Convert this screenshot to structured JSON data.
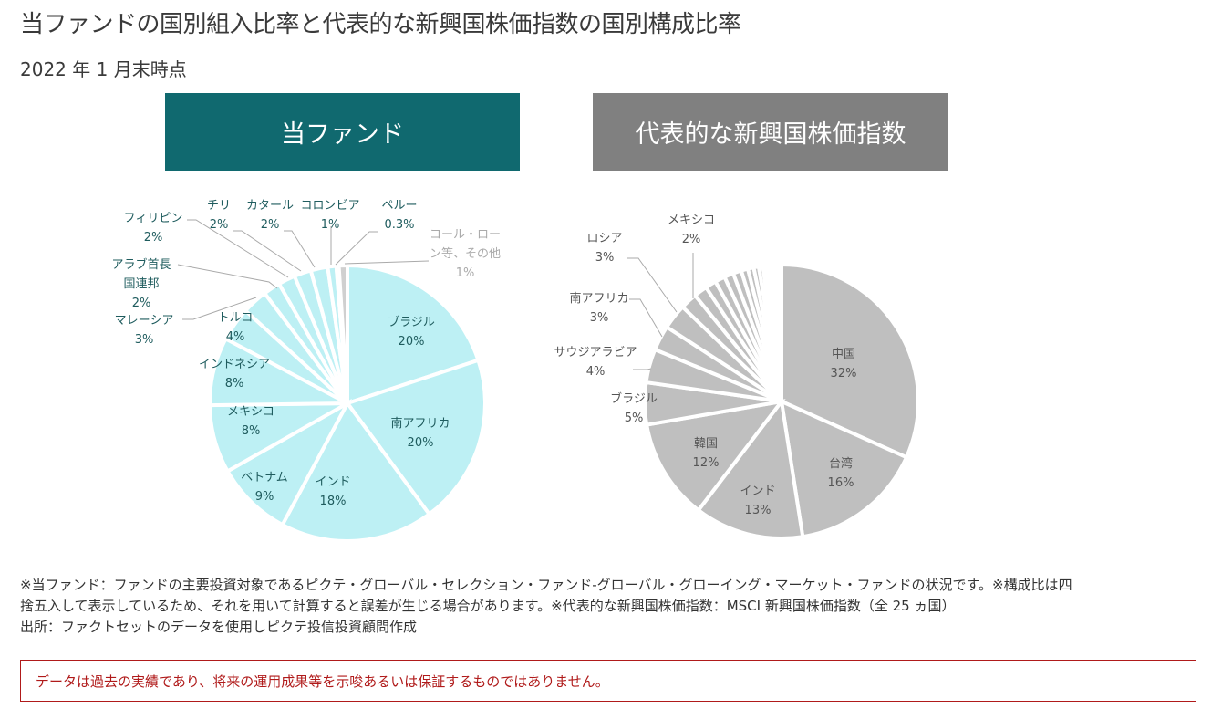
{
  "title": "当ファンドの国別組入比率と代表的な新興国株価指数の国別構成比率",
  "subtitle": "2022 年 1 月末時点",
  "headers": {
    "fund": "当ファンド",
    "index": "代表的な新興国株価指数"
  },
  "colors": {
    "fund_header": "#10696f",
    "index_header": "#808080",
    "fund_slice": "#bdf0f4",
    "fund_other_slice": "#d0d0d0",
    "index_slice": "#bfbfbf",
    "fund_label": "#1f5c5e",
    "index_label": "#555555",
    "other_label": "#aaaaaa",
    "warning": "#b01a1a"
  },
  "chart_data": [
    {
      "type": "pie",
      "title": "当ファンド",
      "start": "12 o'clock, clockwise",
      "slices": [
        {
          "label": "ブラジル",
          "value": 20,
          "value_label": "20%"
        },
        {
          "label": "南アフリカ",
          "value": 20,
          "value_label": "20%"
        },
        {
          "label": "インド",
          "value": 18,
          "value_label": "18%"
        },
        {
          "label": "ベトナム",
          "value": 9,
          "value_label": "9%"
        },
        {
          "label": "メキシコ",
          "value": 8,
          "value_label": "8%"
        },
        {
          "label": "インドネシア",
          "value": 8,
          "value_label": "8%"
        },
        {
          "label": "トルコ",
          "value": 4,
          "value_label": "4%"
        },
        {
          "label": "マレーシア",
          "value": 3,
          "value_label": "3%"
        },
        {
          "label": "アラブ首長国連邦",
          "value": 2,
          "value_label": "2%"
        },
        {
          "label": "フィリピン",
          "value": 2,
          "value_label": "2%"
        },
        {
          "label": "チリ",
          "value": 2,
          "value_label": "2%"
        },
        {
          "label": "カタール",
          "value": 2,
          "value_label": "2%"
        },
        {
          "label": "コロンビア",
          "value": 1,
          "value_label": "1%"
        },
        {
          "label": "ペルー",
          "value": 0.3,
          "value_label": "0.3%"
        },
        {
          "label": "コール・ローン等、その他",
          "value": 1,
          "value_label": "1%",
          "other": true
        }
      ]
    },
    {
      "type": "pie",
      "title": "代表的な新興国株価指数",
      "start": "12 o'clock, clockwise",
      "slices": [
        {
          "label": "中国",
          "value": 32,
          "value_label": "32%"
        },
        {
          "label": "台湾",
          "value": 16,
          "value_label": "16%"
        },
        {
          "label": "インド",
          "value": 13,
          "value_label": "13%"
        },
        {
          "label": "韓国",
          "value": 12,
          "value_label": "12%"
        },
        {
          "label": "ブラジル",
          "value": 5,
          "value_label": "5%"
        },
        {
          "label": "サウジアラビア",
          "value": 4,
          "value_label": "4%"
        },
        {
          "label": "南アフリカ",
          "value": 3,
          "value_label": "3%"
        },
        {
          "label": "ロシア",
          "value": 3,
          "value_label": "3%"
        },
        {
          "label": "メキシコ",
          "value": 2,
          "value_label": "2%"
        },
        {
          "label": "",
          "value": 1.6,
          "value_label": ""
        },
        {
          "label": "",
          "value": 1.3,
          "value_label": ""
        },
        {
          "label": "",
          "value": 1.2,
          "value_label": ""
        },
        {
          "label": "",
          "value": 1.1,
          "value_label": ""
        },
        {
          "label": "",
          "value": 1.0,
          "value_label": ""
        },
        {
          "label": "",
          "value": 0.8,
          "value_label": ""
        },
        {
          "label": "",
          "value": 0.7,
          "value_label": ""
        },
        {
          "label": "",
          "value": 0.6,
          "value_label": ""
        },
        {
          "label": "",
          "value": 0.5,
          "value_label": ""
        },
        {
          "label": "",
          "value": 0.4,
          "value_label": ""
        },
        {
          "label": "",
          "value": 0.3,
          "value_label": ""
        },
        {
          "label": "",
          "value": 0.2,
          "value_label": ""
        },
        {
          "label": "",
          "value": 0.2,
          "value_label": ""
        },
        {
          "label": "",
          "value": 1.1,
          "value_label": "",
          "blank": true
        }
      ]
    }
  ],
  "notes": [
    "※当ファンド：ファンドの主要投資対象であるピクテ・グローバル・セレクション・ファンド-グローバル・グローイング・マーケット・ファンドの状況です。※構成比は四",
    "捨五入して表示しているため、それを用いて計算すると誤差が生じる場合があります。※代表的な新興国株価指数：MSCI 新興国株価指数（全 25 ヵ国）",
    "出所：ファクトセットのデータを使用しピクテ投信投資顧問作成"
  ],
  "warning": "データは過去の実績であり、将来の運用成果等を示唆あるいは保証するものではありません。"
}
